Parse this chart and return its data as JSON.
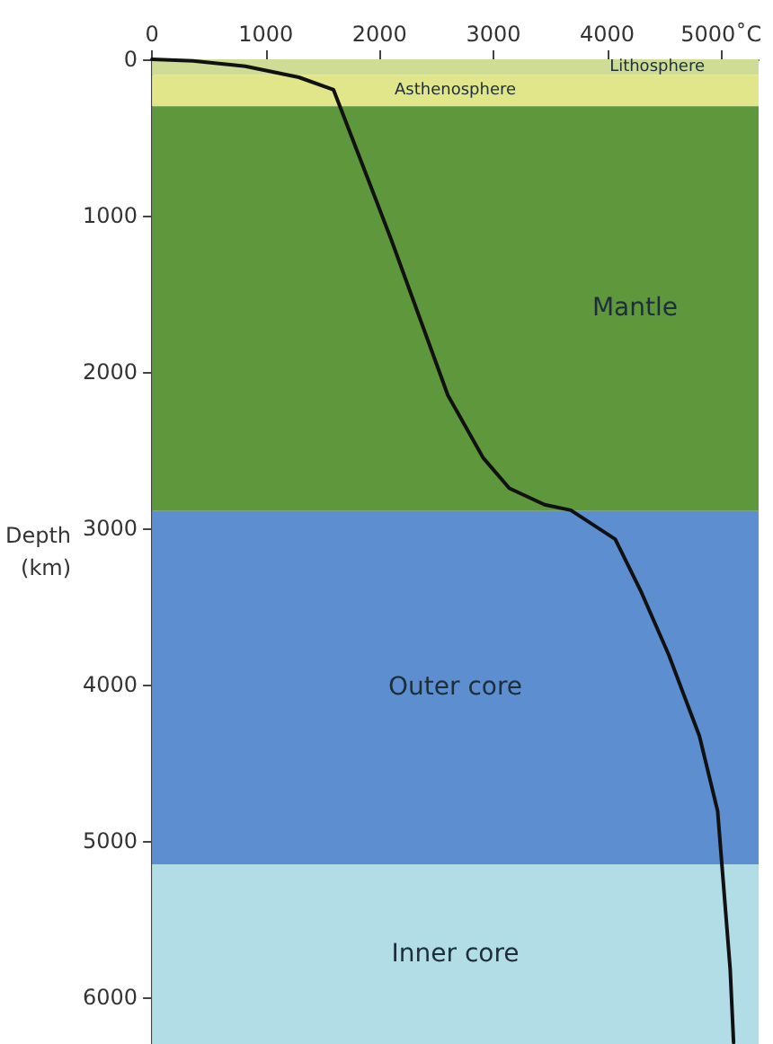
{
  "chart_data": {
    "type": "line",
    "ylabel": "Depth (km)",
    "x": [
      0,
      360,
      820,
      1290,
      1595,
      1900,
      2100,
      2370,
      2600,
      2910,
      3140,
      3450,
      3680,
      4070,
      4300,
      4540,
      4810,
      4970,
      5030,
      5080,
      5110
    ],
    "series": [
      {
        "color": "#111111",
        "values": [
          0,
          10,
          45,
          115,
          195,
          770,
          1150,
          1690,
          2150,
          2550,
          2745,
          2850,
          2885,
          3070,
          3410,
          3810,
          4330,
          4810,
          5360,
          5820,
          6290
        ]
      }
    ],
    "xlim": [
      0,
      5330
    ],
    "xticks": [
      0,
      1000,
      2000,
      3000,
      4000,
      {
        "value": 5000,
        "label": "5000˚C"
      }
    ],
    "ylim": [
      6300,
      0
    ],
    "yticks": [
      0,
      1000,
      2000,
      3000,
      4000,
      5000,
      6000
    ],
    "grid": false,
    "marker": "none",
    "line_style": "solid",
    "bands": [
      {
        "axis": "y",
        "from": 0,
        "to": 100,
        "label": "Lithosphere",
        "color": "#cfdc96"
      },
      {
        "axis": "y",
        "from": 100,
        "to": 300,
        "label": "Asthenosphere",
        "color": "#e2e68a"
      },
      {
        "axis": "y",
        "from": 300,
        "to": 2890,
        "label": "Mantle",
        "color": "#5f973d"
      },
      {
        "axis": "y",
        "from": 2890,
        "to": 5150,
        "label": "Outer core",
        "color": "#5d8fd0"
      },
      {
        "axis": "y",
        "from": 5150,
        "to": 6300,
        "label": "Inner core",
        "color": "#b3dde6"
      }
    ]
  }
}
